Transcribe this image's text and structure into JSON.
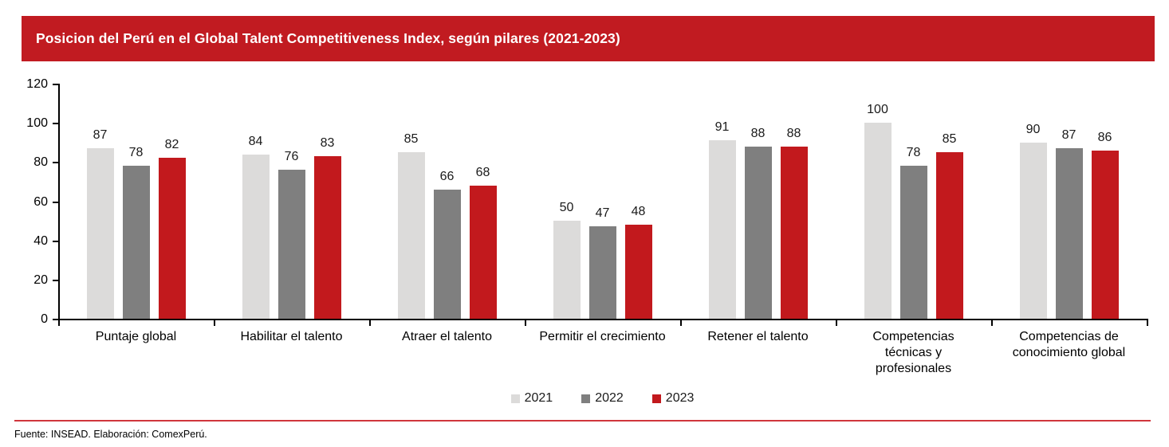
{
  "banner": {
    "bg_color": "#C11B21",
    "text_color": "#FFFFFF"
  },
  "chart_data": {
    "type": "bar",
    "title": "Posicion del Perú en el Global Talent Competitiveness Index, según pilares (2021-2023)",
    "categories": [
      "Puntaje global",
      "Habilitar el talento",
      "Atraer el talento",
      "Permitir el crecimiento",
      "Retener el talento",
      "Competencias técnicas y profesionales",
      "Competencias de conocimiento global"
    ],
    "series": [
      {
        "name": "2021",
        "color": "#DCDBDA",
        "values": [
          87,
          84,
          85,
          50,
          91,
          100,
          90
        ]
      },
      {
        "name": "2022",
        "color": "#7F7F7F",
        "values": [
          78,
          76,
          66,
          47,
          88,
          78,
          87
        ]
      },
      {
        "name": "2023",
        "color": "#C2191D",
        "values": [
          82,
          83,
          68,
          48,
          88,
          85,
          86
        ]
      }
    ],
    "xlabel": "",
    "ylabel": "",
    "ylim": [
      0,
      120
    ],
    "ytick_step": 20,
    "grid": false,
    "legend_position": "bottom",
    "data_labels": true
  },
  "footer": {
    "source": "Fuente: INSEAD. Elaboración: ComexPerú.",
    "rule_color": "#D0363C"
  }
}
